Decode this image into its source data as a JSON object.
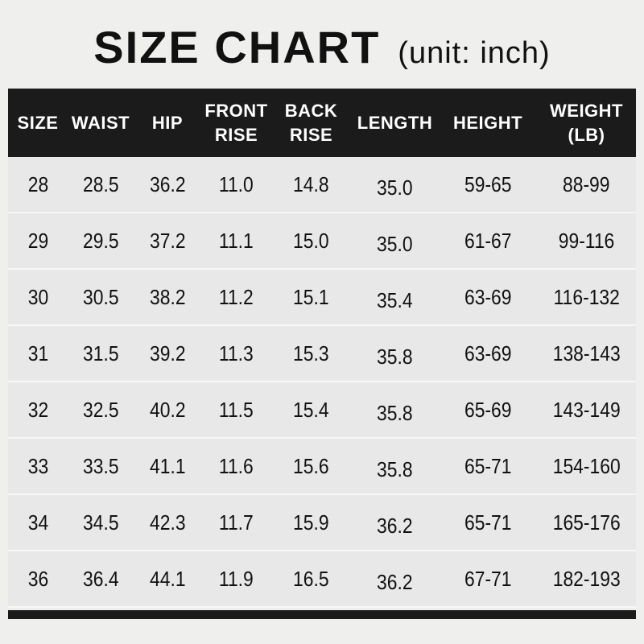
{
  "title": "SIZE CHART",
  "unit": "(unit: inch)",
  "headers": [
    "SIZE",
    "WAIST",
    "HIP",
    "FRONT RISE",
    "BACK RISE",
    "LENGTH",
    "HEIGHT",
    "WEIGHT (LB)"
  ],
  "rows": [
    [
      "28",
      "28.5",
      "36.2",
      "11.0",
      "14.8",
      "35.0",
      "59-65",
      "88-99"
    ],
    [
      "29",
      "29.5",
      "37.2",
      "11.1",
      "15.0",
      "35.0",
      "61-67",
      "99-116"
    ],
    [
      "30",
      "30.5",
      "38.2",
      "11.2",
      "15.1",
      "35.4",
      "63-69",
      "116-132"
    ],
    [
      "31",
      "31.5",
      "39.2",
      "11.3",
      "15.3",
      "35.8",
      "63-69",
      "138-143"
    ],
    [
      "32",
      "32.5",
      "40.2",
      "11.5",
      "15.4",
      "35.8",
      "65-69",
      "143-149"
    ],
    [
      "33",
      "33.5",
      "41.1",
      "11.6",
      "15.6",
      "35.8",
      "65-71",
      "154-160"
    ],
    [
      "34",
      "34.5",
      "42.3",
      "11.7",
      "15.9",
      "36.2",
      "65-71",
      "165-176"
    ],
    [
      "36",
      "36.4",
      "44.1",
      "11.9",
      "16.5",
      "36.2",
      "67-71",
      "182-193"
    ]
  ]
}
